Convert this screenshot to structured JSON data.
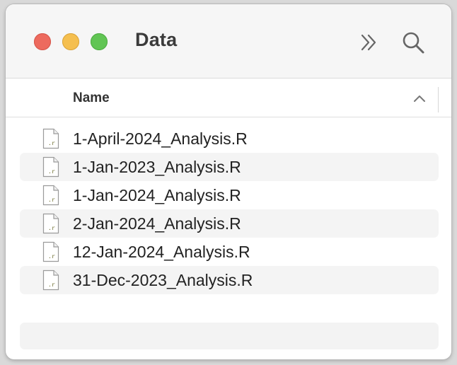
{
  "window": {
    "title": "Data",
    "controls": {
      "close_color": "#ED6A5E",
      "minimize_color": "#F5BF4F",
      "zoom_color": "#61C554"
    },
    "toolbar": {
      "more_icon": "chevron-double-right-icon",
      "search_icon": "magnifier-icon"
    }
  },
  "list_header": {
    "name_label": "Name",
    "sort_icon": "chevron-up-icon"
  },
  "files": [
    {
      "name": "1-April-2024_Analysis.R",
      "icon_label": ".r"
    },
    {
      "name": "1-Jan-2023_Analysis.R",
      "icon_label": ".r"
    },
    {
      "name": "1-Jan-2024_Analysis.R",
      "icon_label": ".r"
    },
    {
      "name": "2-Jan-2024_Analysis.R",
      "icon_label": ".r"
    },
    {
      "name": "12-Jan-2024_Analysis.R",
      "icon_label": ".r"
    },
    {
      "name": "31-Dec-2023_Analysis.R",
      "icon_label": ".r"
    }
  ]
}
